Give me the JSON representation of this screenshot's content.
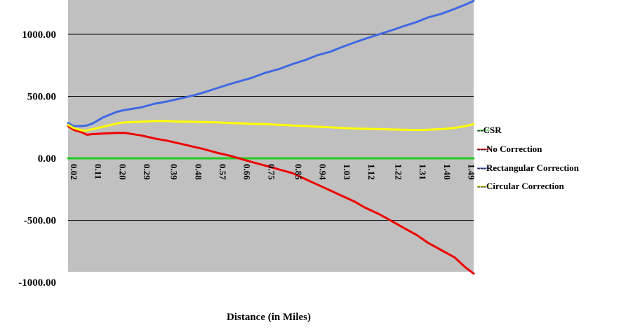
{
  "chart_data": {
    "type": "line",
    "title": "",
    "xlabel": "Distance (in Miles)",
    "ylabel": "",
    "xlim": [
      0.02,
      1.52
    ],
    "ylim": [
      -1000,
      1300
    ],
    "y_ticks": [
      "-1000.00",
      "-500.00",
      "0.00",
      "500.00",
      "1000.00"
    ],
    "y_tick_values": [
      -1000,
      -500,
      0,
      500,
      1000
    ],
    "x_ticks": [
      "0.02",
      "0.11",
      "0.20",
      "0.29",
      "0.39",
      "0.48",
      "0.57",
      "0.66",
      "0.75",
      "0.85",
      "0.94",
      "1.03",
      "1.12",
      "1.22",
      "1.31",
      "1.40",
      "1.49"
    ],
    "x_tick_values": [
      0.02,
      0.11,
      0.2,
      0.29,
      0.39,
      0.48,
      0.57,
      0.66,
      0.75,
      0.85,
      0.94,
      1.03,
      1.12,
      1.22,
      1.31,
      1.4,
      1.49
    ],
    "grid": "horizontal",
    "legend_position": "right",
    "plot_background": "#c0c0c0",
    "series": [
      {
        "name": "--CSR",
        "color": "#22cc22",
        "x": [
          0.02,
          1.52
        ],
        "values": [
          0,
          0
        ]
      },
      {
        "name": "---No Correction",
        "color": "#ee0000",
        "x": [
          0.02,
          0.04,
          0.07,
          0.09,
          0.11,
          0.15,
          0.2,
          0.23,
          0.29,
          0.34,
          0.39,
          0.44,
          0.48,
          0.52,
          0.57,
          0.62,
          0.66,
          0.7,
          0.75,
          0.8,
          0.85,
          0.9,
          0.94,
          0.99,
          1.03,
          1.08,
          1.12,
          1.17,
          1.22,
          1.26,
          1.31,
          1.35,
          1.4,
          1.45,
          1.49,
          1.52
        ],
        "values": [
          260,
          230,
          210,
          190,
          195,
          200,
          205,
          205,
          185,
          160,
          140,
          115,
          95,
          75,
          45,
          20,
          -5,
          -30,
          -60,
          -90,
          -120,
          -170,
          -210,
          -260,
          -300,
          -350,
          -400,
          -450,
          -510,
          -560,
          -620,
          -680,
          -740,
          -800,
          -880,
          -930
        ]
      },
      {
        "name": "---Rectangular  Correction",
        "color": "#4169e1",
        "x": [
          0.02,
          0.04,
          0.07,
          0.09,
          0.11,
          0.15,
          0.2,
          0.23,
          0.29,
          0.34,
          0.39,
          0.44,
          0.48,
          0.52,
          0.57,
          0.62,
          0.66,
          0.7,
          0.75,
          0.8,
          0.85,
          0.9,
          0.94,
          0.99,
          1.03,
          1.08,
          1.12,
          1.17,
          1.22,
          1.26,
          1.31,
          1.35,
          1.4,
          1.45,
          1.49,
          1.52
        ],
        "values": [
          285,
          260,
          260,
          265,
          280,
          330,
          375,
          390,
          410,
          440,
          460,
          485,
          505,
          530,
          565,
          600,
          625,
          650,
          690,
          720,
          760,
          795,
          830,
          860,
          895,
          935,
          965,
          1000,
          1035,
          1065,
          1100,
          1135,
          1165,
          1205,
          1240,
          1270
        ]
      },
      {
        "name": "---Circular  Correction",
        "color": "#ffff00",
        "x": [
          0.02,
          0.04,
          0.07,
          0.09,
          0.11,
          0.15,
          0.2,
          0.23,
          0.29,
          0.34,
          0.39,
          0.44,
          0.48,
          0.52,
          0.57,
          0.62,
          0.66,
          0.7,
          0.75,
          0.8,
          0.85,
          0.9,
          0.94,
          0.99,
          1.03,
          1.08,
          1.12,
          1.17,
          1.22,
          1.26,
          1.31,
          1.35,
          1.4,
          1.45,
          1.49,
          1.52
        ],
        "values": [
          270,
          245,
          225,
          225,
          235,
          255,
          280,
          290,
          295,
          300,
          300,
          295,
          295,
          292,
          290,
          285,
          282,
          278,
          275,
          270,
          265,
          260,
          255,
          250,
          245,
          240,
          238,
          235,
          232,
          230,
          228,
          230,
          235,
          245,
          260,
          275
        ]
      }
    ]
  }
}
